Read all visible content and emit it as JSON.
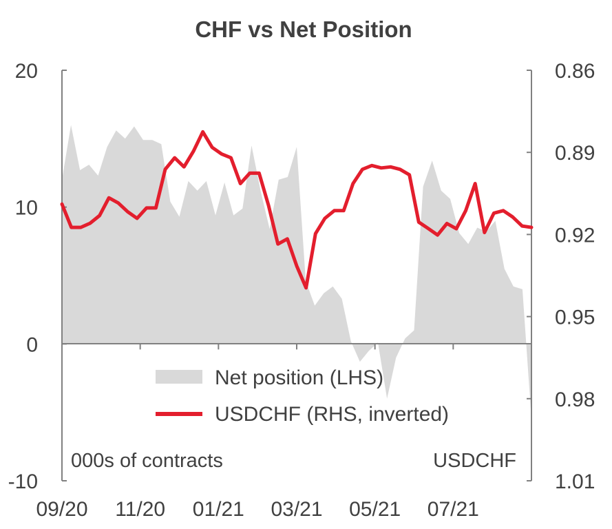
{
  "chart_data": {
    "type": "line",
    "title": "CHF  vs  Net Position",
    "x_ticks": [
      "09/20",
      "11/20",
      "01/21",
      "03/21",
      "05/21",
      "07/21"
    ],
    "left_axis": {
      "ylim": [
        -10,
        20
      ],
      "ticks": [
        "20",
        "10",
        "0",
        "-10"
      ],
      "label": "000s of contracts"
    },
    "right_axis": {
      "ylim": [
        0.86,
        1.01
      ],
      "inverted": true,
      "ticks": [
        "0.86",
        "0.89",
        "0.92",
        "0.95",
        "0.98",
        "1.01"
      ],
      "label": "USDCHF"
    },
    "legend": {
      "position": "lower-center"
    },
    "series": [
      {
        "name": "Net position (LHS)",
        "type": "area",
        "axis": "left",
        "color": "#d9d9d9",
        "values": [
          12,
          16,
          12.7,
          13.1,
          12.3,
          14.4,
          15.6,
          15,
          15.9,
          14.9,
          14.9,
          14.6,
          10.4,
          9.3,
          11.9,
          11.2,
          11.9,
          9.4,
          11.8,
          9.4,
          9.9,
          14.5,
          11.2,
          8.4,
          12,
          12.2,
          14.4,
          4.6,
          2.8,
          3.7,
          4.2,
          3.3,
          0.2,
          -1.3,
          -0.5,
          0.1,
          -4,
          -1,
          0.4,
          1,
          11.5,
          13.4,
          11.2,
          10.6,
          8.1,
          7.3,
          8.5,
          8.2,
          9,
          5.5,
          4.2,
          4,
          -5.5
        ]
      },
      {
        "name": "USDCHF (RHS, inverted)",
        "type": "line",
        "axis": "right",
        "color": "#e31e2d",
        "values": [
          0.9089,
          0.9174,
          0.9174,
          0.9159,
          0.9131,
          0.9066,
          0.9085,
          0.9117,
          0.9141,
          0.9103,
          0.9103,
          0.8962,
          0.892,
          0.8953,
          0.8896,
          0.8825,
          0.8882,
          0.8906,
          0.892,
          0.9014,
          0.8976,
          0.8976,
          0.9094,
          0.9235,
          0.9216,
          0.9315,
          0.9395,
          0.9197,
          0.9141,
          0.9113,
          0.9113,
          0.9014,
          0.8962,
          0.8948,
          0.8957,
          0.8953,
          0.8962,
          0.8982,
          0.9155,
          0.9178,
          0.9202,
          0.916,
          0.9179,
          0.9113,
          0.9014,
          0.9193,
          0.9122,
          0.9113,
          0.9136,
          0.9169,
          0.9174
        ]
      }
    ]
  }
}
